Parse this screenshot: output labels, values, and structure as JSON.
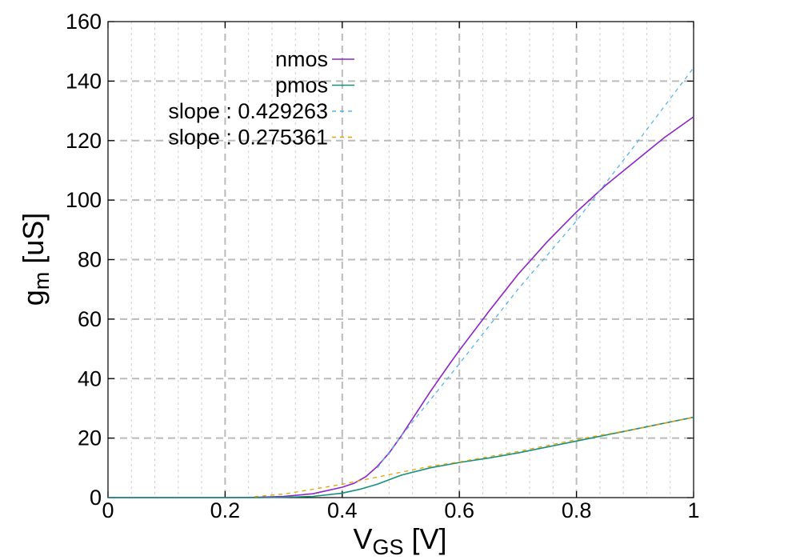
{
  "chart_data": {
    "type": "line",
    "xlabel": {
      "main": "V",
      "sub": "GS",
      "unit": " [V]"
    },
    "ylabel": {
      "main": "g",
      "sub": "m",
      "unit": " [uS]"
    },
    "xlim": [
      0,
      1
    ],
    "ylim": [
      0,
      160
    ],
    "x_ticks": [
      0,
      0.2,
      0.4,
      0.6,
      0.8,
      1
    ],
    "x_tick_labels": [
      "0",
      "0.2",
      "0.4",
      "0.6",
      "0.8",
      "1"
    ],
    "y_ticks": [
      0,
      20,
      40,
      60,
      80,
      100,
      120,
      140,
      160
    ],
    "y_tick_labels": [
      "0",
      "20",
      "40",
      "60",
      "80",
      "100",
      "120",
      "140",
      "160"
    ],
    "x_minor_step": 0.04,
    "grid": true,
    "legend_position": "top-left",
    "series": [
      {
        "name": "nmos",
        "color": "#8e24c8",
        "style": "solid",
        "x": [
          0,
          0.2,
          0.25,
          0.3,
          0.35,
          0.4,
          0.42,
          0.44,
          0.46,
          0.48,
          0.5,
          0.52,
          0.55,
          0.58,
          0.6,
          0.65,
          0.7,
          0.75,
          0.8,
          0.85,
          0.9,
          0.95,
          1.0
        ],
        "y": [
          0,
          0,
          0.1,
          0.4,
          1.3,
          3.5,
          4.8,
          7,
          10.5,
          15,
          20.5,
          26.5,
          35.5,
          44,
          49.5,
          62.5,
          75,
          86,
          96,
          105,
          113,
          121,
          128
        ]
      },
      {
        "name": "pmos",
        "color": "#14907c",
        "style": "solid",
        "x": [
          0,
          0.25,
          0.3,
          0.35,
          0.4,
          0.43,
          0.46,
          0.5,
          0.55,
          0.6,
          0.65,
          0.7,
          0.8,
          0.9,
          1.0
        ],
        "y": [
          0,
          0,
          0.1,
          0.4,
          1.5,
          2.8,
          4.5,
          7.5,
          10,
          11.8,
          13.3,
          15,
          19,
          23,
          27
        ]
      },
      {
        "name": "slope : 0.429263",
        "color": "#56b4e9",
        "style": "dashed",
        "x": [
          0.46,
          0.5,
          0.6,
          0.7,
          0.8,
          0.9,
          1.0
        ],
        "y": [
          10,
          20.5,
          45,
          70,
          93,
          118.5,
          144.5
        ]
      },
      {
        "name": "slope : 0.275361",
        "color": "#e69f00",
        "style": "dashed",
        "x": [
          0.25,
          0.3,
          0.35,
          0.4,
          0.45,
          0.5,
          0.55,
          0.6,
          0.7,
          0.8,
          0.9,
          1.0
        ],
        "y": [
          0.3,
          1.2,
          2.8,
          4.5,
          6.5,
          8.5,
          10.5,
          12,
          15.5,
          19.5,
          23,
          27
        ]
      }
    ]
  }
}
